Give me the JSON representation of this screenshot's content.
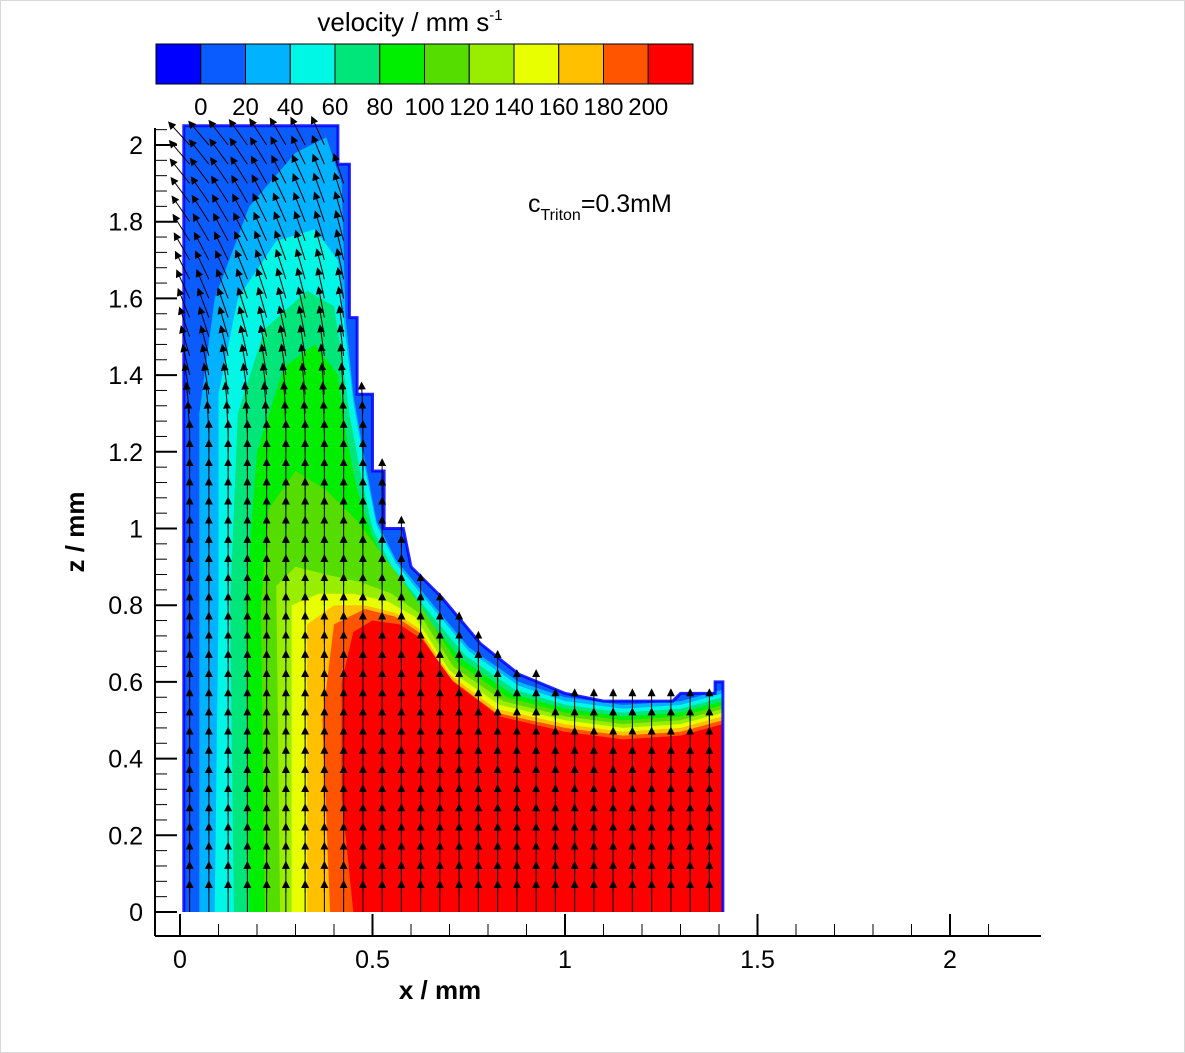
{
  "chart_data": {
    "type": "heatmap",
    "subtype": "velocity contour map with vector field",
    "xlabel": "x / mm",
    "ylabel": "z / mm",
    "xlim": [
      0,
      2.2
    ],
    "ylim": [
      0,
      2.05
    ],
    "xticks": [
      "0",
      "0.5",
      "1",
      "1.5",
      "2"
    ],
    "xtick_values": [
      0,
      0.5,
      1,
      1.5,
      2
    ],
    "yticks": [
      "0",
      "0.2",
      "0.4",
      "0.6",
      "0.8",
      "1",
      "1.2",
      "1.4",
      "1.6",
      "1.8",
      "2"
    ],
    "ytick_values": [
      0,
      0.2,
      0.4,
      0.6,
      0.8,
      1.0,
      1.2,
      1.4,
      1.6,
      1.8,
      2.0
    ],
    "annotation": {
      "prefix": "c",
      "subscript": "Triton",
      "suffix": "=0.3mM"
    },
    "colorbar": {
      "title": "velocity / mm s",
      "title_superscript": "-1",
      "labels": [
        "0",
        "20",
        "40",
        "60",
        "80",
        "100",
        "120",
        "140",
        "160",
        "180",
        "200"
      ],
      "levels": [
        0,
        20,
        40,
        60,
        80,
        100,
        120,
        140,
        160,
        180,
        200
      ],
      "colors": [
        "#0000ff",
        "#0a5cff",
        "#00b2ff",
        "#00f7e6",
        "#00e67a",
        "#00ee00",
        "#55dd00",
        "#99ee00",
        "#e8ff00",
        "#ffc000",
        "#ff5500",
        "#ff0000"
      ]
    },
    "domain_boundary": [
      [
        0.01,
        0.0
      ],
      [
        0.01,
        2.05
      ],
      [
        0.41,
        2.05
      ],
      [
        0.41,
        1.95
      ],
      [
        0.44,
        1.95
      ],
      [
        0.44,
        1.55
      ],
      [
        0.46,
        1.55
      ],
      [
        0.46,
        1.35
      ],
      [
        0.5,
        1.35
      ],
      [
        0.5,
        1.15
      ],
      [
        0.53,
        1.15
      ],
      [
        0.53,
        1.0
      ],
      [
        0.58,
        1.0
      ],
      [
        0.6,
        0.9
      ],
      [
        0.68,
        0.82
      ],
      [
        0.78,
        0.7
      ],
      [
        0.88,
        0.62
      ],
      [
        1.0,
        0.57
      ],
      [
        1.1,
        0.55
      ],
      [
        1.28,
        0.55
      ],
      [
        1.3,
        0.57
      ],
      [
        1.39,
        0.57
      ],
      [
        1.39,
        0.6
      ],
      [
        1.41,
        0.6
      ],
      [
        1.41,
        0.0
      ]
    ],
    "velocity_field_regions": [
      {
        "level": 0,
        "polygon": [
          [
            0.01,
            0.0
          ],
          [
            0.01,
            2.05
          ],
          [
            0.41,
            2.05
          ],
          [
            0.41,
            1.95
          ],
          [
            0.44,
            1.95
          ],
          [
            0.44,
            1.55
          ],
          [
            0.46,
            1.55
          ],
          [
            0.46,
            1.35
          ],
          [
            0.5,
            1.35
          ],
          [
            0.5,
            1.15
          ],
          [
            0.53,
            1.15
          ],
          [
            0.53,
            1.0
          ],
          [
            0.58,
            1.0
          ],
          [
            0.6,
            0.9
          ],
          [
            0.68,
            0.82
          ],
          [
            0.78,
            0.7
          ],
          [
            0.88,
            0.62
          ],
          [
            1.0,
            0.57
          ],
          [
            1.1,
            0.55
          ],
          [
            1.28,
            0.55
          ],
          [
            1.3,
            0.57
          ],
          [
            1.39,
            0.57
          ],
          [
            1.39,
            0.6
          ],
          [
            1.41,
            0.6
          ],
          [
            1.41,
            0.0
          ]
        ]
      },
      {
        "level": 20,
        "polygon": [
          [
            0.05,
            0.0
          ],
          [
            0.05,
            1.3
          ],
          [
            0.09,
            1.6
          ],
          [
            0.18,
            1.84
          ],
          [
            0.3,
            1.98
          ],
          [
            0.38,
            2.02
          ],
          [
            0.42,
            1.9
          ],
          [
            0.43,
            1.55
          ],
          [
            0.45,
            1.35
          ],
          [
            0.48,
            1.18
          ],
          [
            0.51,
            1.02
          ],
          [
            0.56,
            0.92
          ],
          [
            0.65,
            0.81
          ],
          [
            0.75,
            0.69
          ],
          [
            0.88,
            0.6
          ],
          [
            1.0,
            0.56
          ],
          [
            1.15,
            0.54
          ],
          [
            1.3,
            0.55
          ],
          [
            1.41,
            0.58
          ],
          [
            1.41,
            0.0
          ]
        ]
      },
      {
        "level": 40,
        "polygon": [
          [
            0.09,
            0.0
          ],
          [
            0.1,
            0.8
          ],
          [
            0.1,
            1.35
          ],
          [
            0.15,
            1.6
          ],
          [
            0.25,
            1.75
          ],
          [
            0.35,
            1.78
          ],
          [
            0.41,
            1.7
          ],
          [
            0.43,
            1.5
          ],
          [
            0.45,
            1.33
          ],
          [
            0.48,
            1.16
          ],
          [
            0.51,
            1.01
          ],
          [
            0.56,
            0.91
          ],
          [
            0.65,
            0.8
          ],
          [
            0.75,
            0.68
          ],
          [
            0.88,
            0.59
          ],
          [
            1.0,
            0.55
          ],
          [
            1.15,
            0.53
          ],
          [
            1.3,
            0.54
          ],
          [
            1.41,
            0.57
          ],
          [
            1.41,
            0.0
          ]
        ]
      },
      {
        "level": 60,
        "polygon": [
          [
            0.14,
            0.0
          ],
          [
            0.13,
            0.8
          ],
          [
            0.15,
            1.3
          ],
          [
            0.22,
            1.52
          ],
          [
            0.33,
            1.62
          ],
          [
            0.4,
            1.58
          ],
          [
            0.42,
            1.45
          ],
          [
            0.44,
            1.3
          ],
          [
            0.47,
            1.14
          ],
          [
            0.5,
            1.0
          ],
          [
            0.55,
            0.9
          ],
          [
            0.64,
            0.79
          ],
          [
            0.74,
            0.67
          ],
          [
            0.87,
            0.58
          ],
          [
            1.0,
            0.54
          ],
          [
            1.15,
            0.52
          ],
          [
            1.3,
            0.53
          ],
          [
            1.41,
            0.56
          ],
          [
            1.41,
            0.0
          ]
        ]
      },
      {
        "level": 80,
        "polygon": [
          [
            0.18,
            0.0
          ],
          [
            0.17,
            0.8
          ],
          [
            0.2,
            1.2
          ],
          [
            0.27,
            1.42
          ],
          [
            0.35,
            1.48
          ],
          [
            0.41,
            1.4
          ],
          [
            0.43,
            1.25
          ],
          [
            0.46,
            1.1
          ],
          [
            0.5,
            0.98
          ],
          [
            0.55,
            0.88
          ],
          [
            0.63,
            0.78
          ],
          [
            0.73,
            0.66
          ],
          [
            0.86,
            0.57
          ],
          [
            1.0,
            0.53
          ],
          [
            1.15,
            0.51
          ],
          [
            1.3,
            0.52
          ],
          [
            1.41,
            0.55
          ],
          [
            1.41,
            0.0
          ]
        ]
      },
      {
        "level": 100,
        "polygon": [
          [
            0.22,
            0.0
          ],
          [
            0.21,
            0.8
          ],
          [
            0.23,
            1.05
          ],
          [
            0.3,
            1.15
          ],
          [
            0.38,
            1.1
          ],
          [
            0.46,
            1.02
          ],
          [
            0.52,
            0.94
          ],
          [
            0.58,
            0.86
          ],
          [
            0.63,
            0.79
          ],
          [
            0.72,
            0.65
          ],
          [
            0.85,
            0.56
          ],
          [
            1.0,
            0.52
          ],
          [
            1.15,
            0.5
          ],
          [
            1.3,
            0.51
          ],
          [
            1.41,
            0.54
          ],
          [
            1.41,
            0.0
          ]
        ]
      },
      {
        "level": 120,
        "polygon": [
          [
            0.26,
            0.0
          ],
          [
            0.25,
            0.85
          ],
          [
            0.3,
            0.9
          ],
          [
            0.38,
            0.88
          ],
          [
            0.47,
            0.86
          ],
          [
            0.55,
            0.83
          ],
          [
            0.62,
            0.78
          ],
          [
            0.71,
            0.64
          ],
          [
            0.84,
            0.55
          ],
          [
            1.0,
            0.51
          ],
          [
            1.15,
            0.49
          ],
          [
            1.3,
            0.5
          ],
          [
            1.41,
            0.53
          ],
          [
            1.41,
            0.0
          ]
        ]
      },
      {
        "level": 140,
        "polygon": [
          [
            0.29,
            0.0
          ],
          [
            0.29,
            0.8
          ],
          [
            0.36,
            0.83
          ],
          [
            0.45,
            0.83
          ],
          [
            0.54,
            0.81
          ],
          [
            0.61,
            0.77
          ],
          [
            0.7,
            0.63
          ],
          [
            0.83,
            0.54
          ],
          [
            1.0,
            0.5
          ],
          [
            1.15,
            0.48
          ],
          [
            1.3,
            0.49
          ],
          [
            1.41,
            0.52
          ],
          [
            1.41,
            0.0
          ]
        ]
      },
      {
        "level": 160,
        "polygon": [
          [
            0.33,
            0.0
          ],
          [
            0.33,
            0.75
          ],
          [
            0.4,
            0.8
          ],
          [
            0.48,
            0.8
          ],
          [
            0.56,
            0.78
          ],
          [
            0.62,
            0.74
          ],
          [
            0.7,
            0.62
          ],
          [
            0.82,
            0.53
          ],
          [
            1.0,
            0.49
          ],
          [
            1.15,
            0.47
          ],
          [
            1.3,
            0.48
          ],
          [
            1.41,
            0.51
          ],
          [
            1.41,
            0.0
          ]
        ]
      },
      {
        "level": 180,
        "polygon": [
          [
            0.39,
            0.0
          ],
          [
            0.37,
            0.5
          ],
          [
            0.4,
            0.75
          ],
          [
            0.48,
            0.79
          ],
          [
            0.56,
            0.77
          ],
          [
            0.62,
            0.73
          ],
          [
            0.7,
            0.61
          ],
          [
            0.82,
            0.52
          ],
          [
            1.0,
            0.48
          ],
          [
            1.15,
            0.46
          ],
          [
            1.3,
            0.47
          ],
          [
            1.41,
            0.5
          ],
          [
            1.41,
            0.0
          ]
        ]
      },
      {
        "level": 200,
        "polygon": [
          [
            0.45,
            0.0
          ],
          [
            0.42,
            0.3
          ],
          [
            0.42,
            0.6
          ],
          [
            0.45,
            0.73
          ],
          [
            0.5,
            0.76
          ],
          [
            0.57,
            0.75
          ],
          [
            0.63,
            0.71
          ],
          [
            0.71,
            0.6
          ],
          [
            0.83,
            0.51
          ],
          [
            1.0,
            0.47
          ],
          [
            1.15,
            0.45
          ],
          [
            1.3,
            0.46
          ],
          [
            1.41,
            0.49
          ],
          [
            1.41,
            0.0
          ]
        ]
      }
    ],
    "vector_field": {
      "x_start": 0.025,
      "x_step": 0.05,
      "x_end": 1.41,
      "z_start": 0.0,
      "z_step": 0.05,
      "direction": "upward (+z) everywhere; in the upper channel (z > 1.2) vectors tilt toward -x, increasingly near the top"
    }
  }
}
